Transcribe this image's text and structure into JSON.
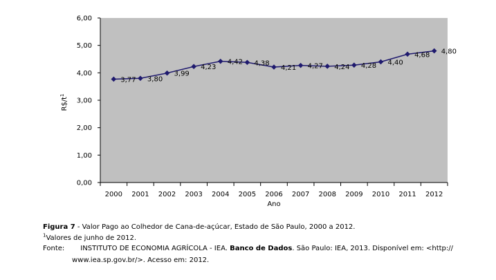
{
  "chart_data": {
    "type": "line",
    "title": "",
    "xlabel": "Ano",
    "ylabel": "R$/t",
    "ylabel_sup": "1",
    "ylim": [
      0,
      6
    ],
    "yticks": [
      "0,00",
      "1,00",
      "2,00",
      "3,00",
      "4,00",
      "5,00",
      "6,00"
    ],
    "categories": [
      "2000",
      "2001",
      "2002",
      "2003",
      "2004",
      "2005",
      "2006",
      "2007",
      "2008",
      "2009",
      "2010",
      "2011",
      "2012"
    ],
    "series": [
      {
        "name": "Valor Pago ao Colhedor",
        "values": [
          3.77,
          3.8,
          3.99,
          4.23,
          4.42,
          4.38,
          4.21,
          4.27,
          4.24,
          4.28,
          4.4,
          4.68,
          4.8
        ],
        "labels": [
          "3,77",
          "3,80",
          "3,99",
          "4,23",
          "4,42",
          "4,38",
          "4,21",
          "4,27",
          "4,24",
          "4,28",
          "4,40",
          "4,68",
          "4,80"
        ],
        "color": "#1f1a6e"
      }
    ],
    "plot_background": "#c0c0c0",
    "grid": false
  },
  "caption": {
    "figure_label": "Figura 7",
    "figure_title": " - Valor Pago ao Colhedor de Cana-de-açúcar, Estado de São Paulo, 2000 a 2012.",
    "note_sup": "1",
    "note": "Valores de junho de 2012.",
    "source_prefix": "Fonte:",
    "source_institution": "INSTITUTO DE ECONOMIA AGRÍCOLA - IEA.",
    "source_db": "Banco de Dados",
    "source_rest": ". São Paulo: IEA, 2013. Disponível em: <http://",
    "source_url": "www.iea.sp.gov.br/>. Acesso em: 2012."
  }
}
